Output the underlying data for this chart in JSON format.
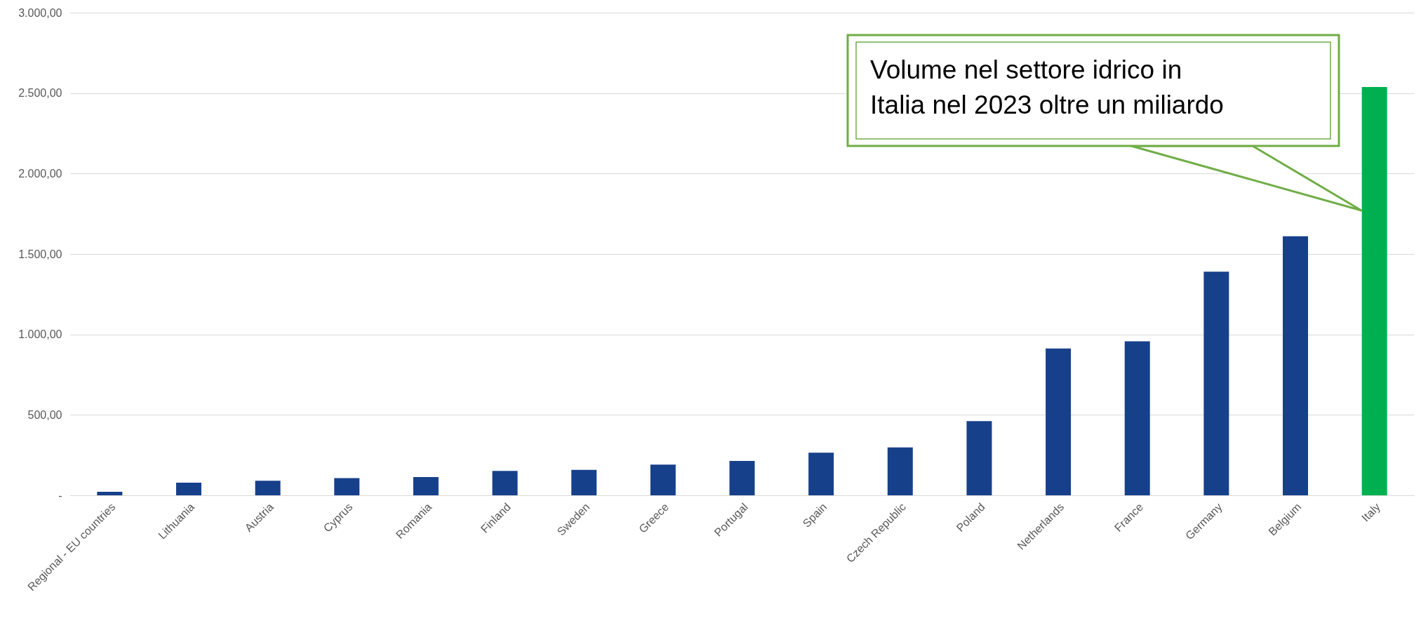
{
  "chart_data": {
    "type": "bar",
    "categories": [
      "Regional - EU countries",
      "Lithuania",
      "Austria",
      "Cyprus",
      "Romania",
      "Finland",
      "Sweden",
      "Greece",
      "Portugal",
      "Spain",
      "Czech Republic",
      "Poland",
      "Netherlands",
      "France",
      "Germany",
      "Belgium",
      "Italy"
    ],
    "values": [
      22,
      79,
      90,
      107,
      113,
      152,
      158,
      191,
      214,
      265,
      298,
      461,
      912,
      957,
      1390,
      1610,
      2538
    ],
    "colors": [
      "#17408b",
      "#17408b",
      "#17408b",
      "#17408b",
      "#17408b",
      "#17408b",
      "#17408b",
      "#17408b",
      "#17408b",
      "#17408b",
      "#17408b",
      "#17408b",
      "#17408b",
      "#17408b",
      "#17408b",
      "#17408b",
      "#00b050"
    ],
    "ylim": [
      0,
      3000
    ],
    "yticks": [
      {
        "value": 0,
        "label": "-"
      },
      {
        "value": 500,
        "label": "500,00"
      },
      {
        "value": 1000,
        "label": "1.000,00"
      },
      {
        "value": 1500,
        "label": "1.500,00"
      },
      {
        "value": 2000,
        "label": "2.000,00"
      },
      {
        "value": 2500,
        "label": "2.500,00"
      },
      {
        "value": 3000,
        "label": "3.000,00"
      }
    ],
    "grid": "y",
    "annotations": [
      "Volume nel settore idrico in Italia nel 2023 oltre un miliardo"
    ]
  }
}
